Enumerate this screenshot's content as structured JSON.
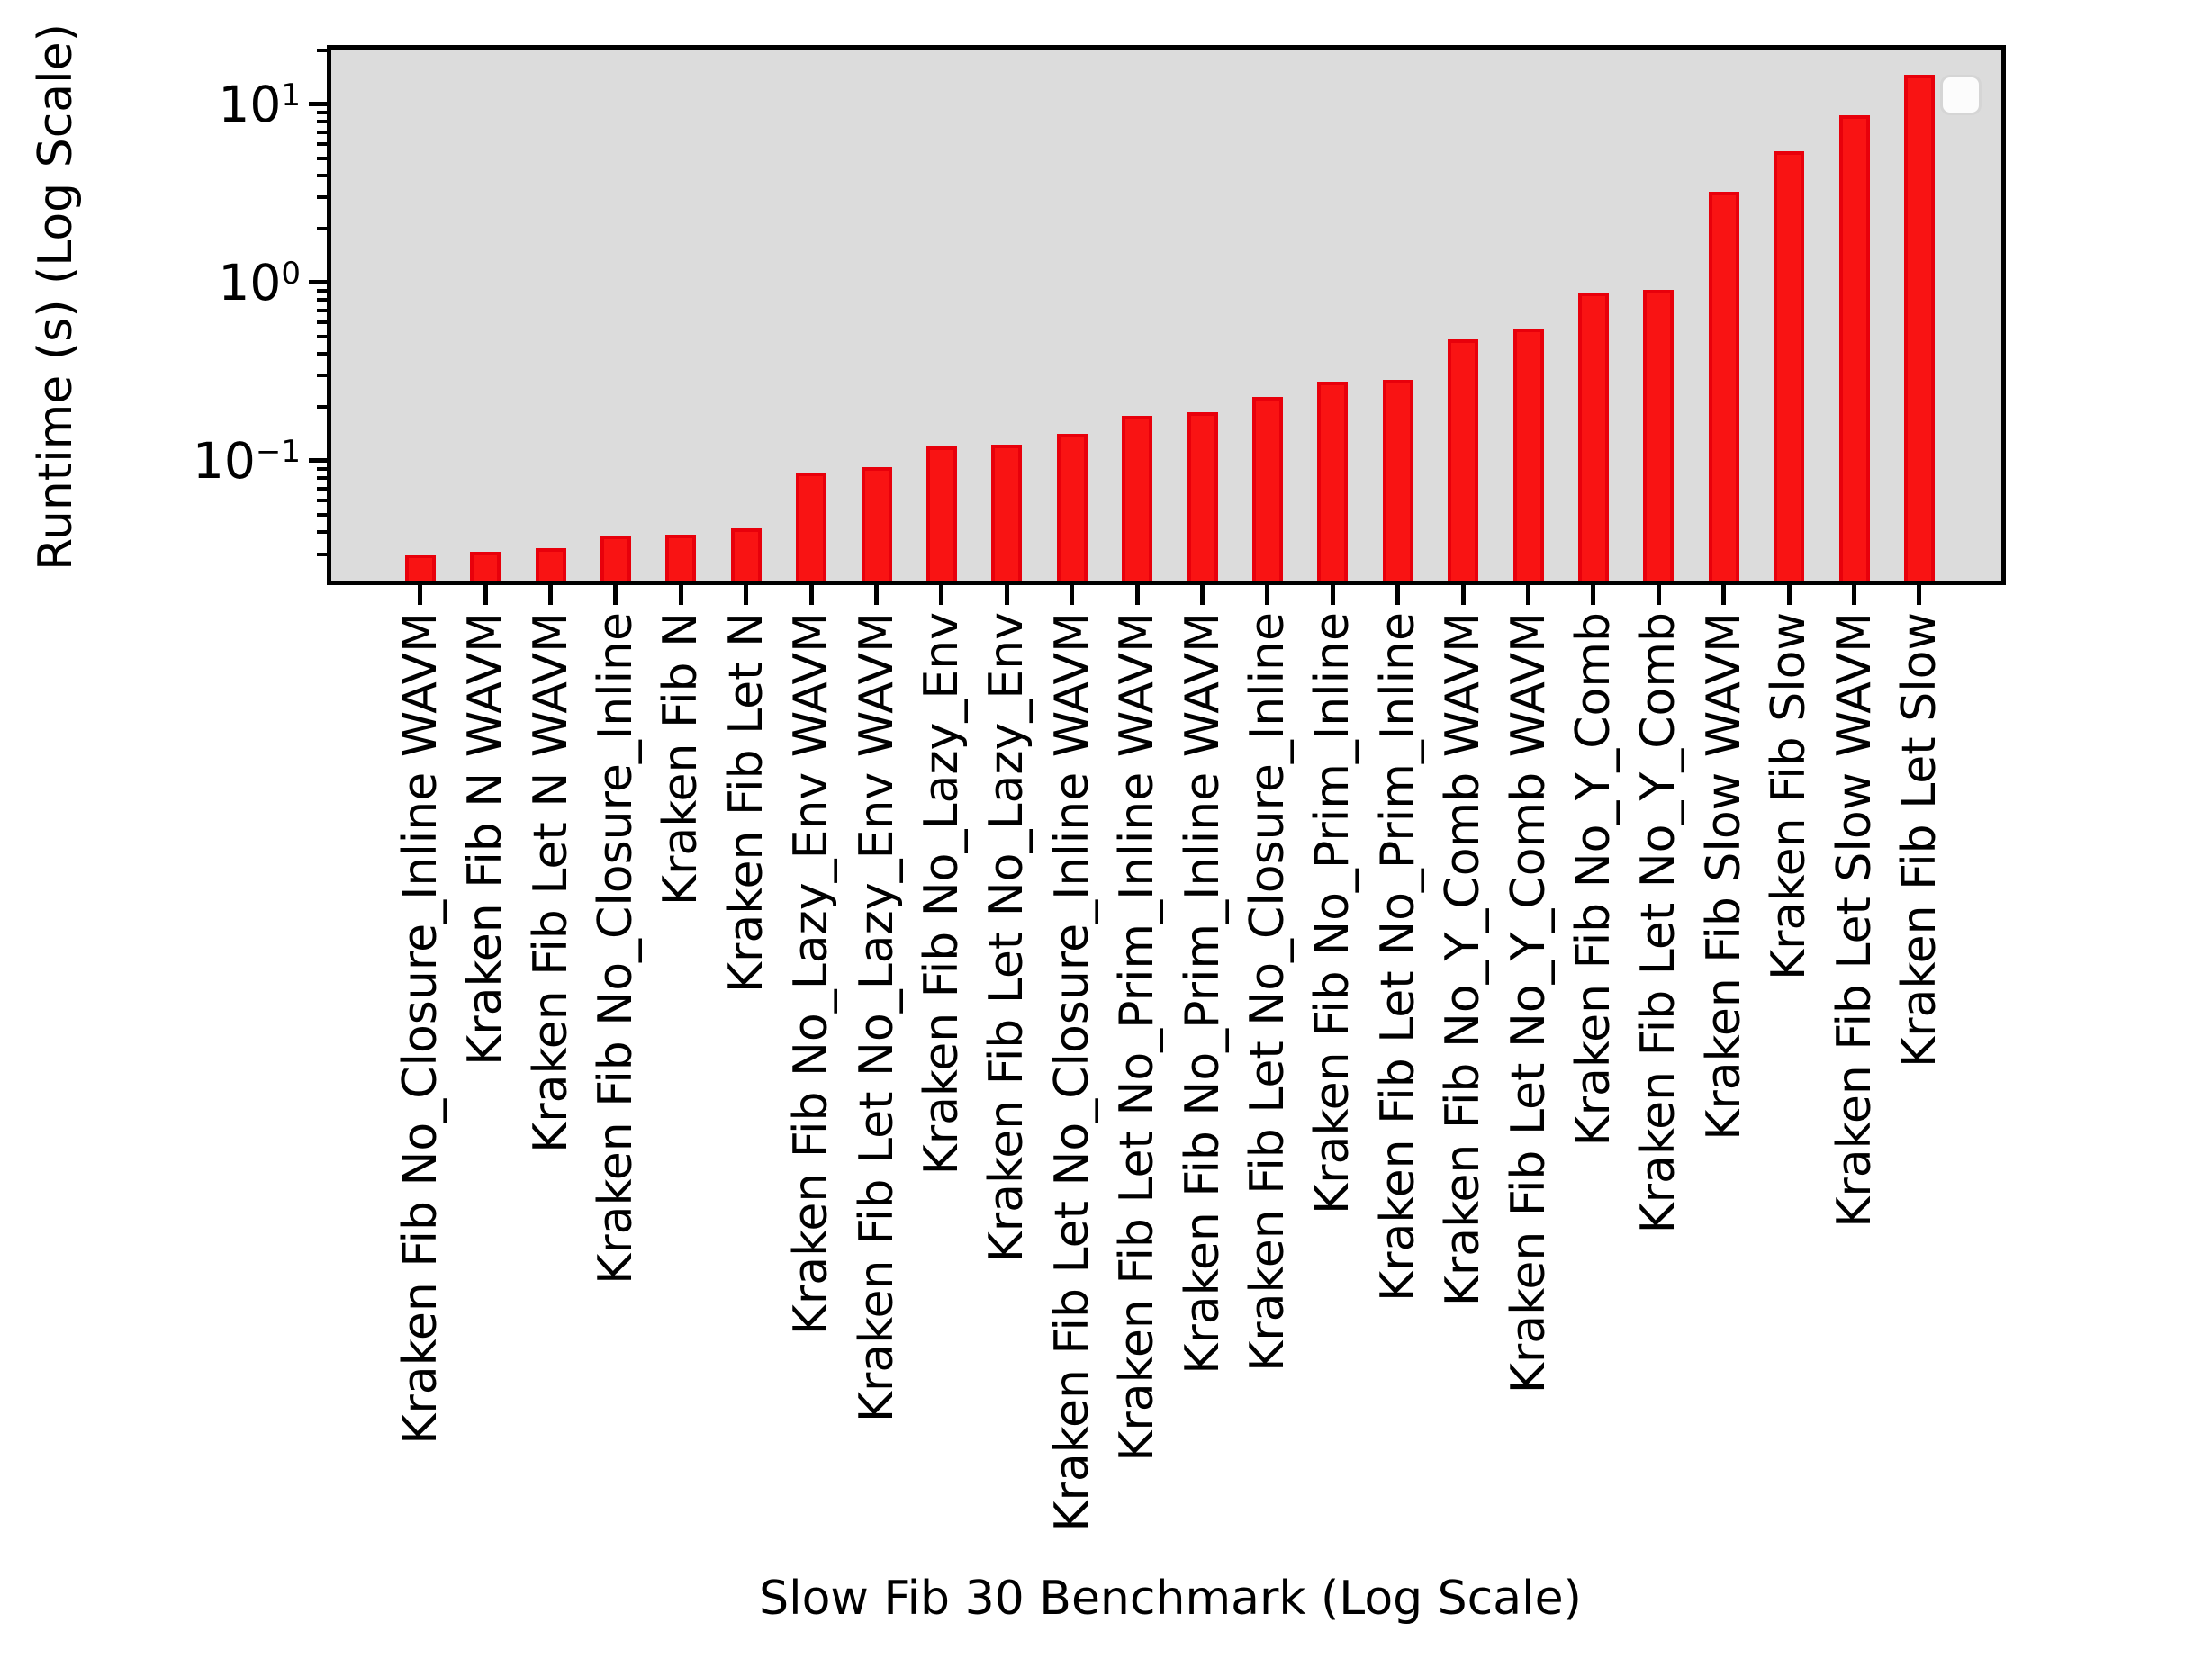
{
  "chart_data": {
    "type": "bar",
    "title": "",
    "xlabel": "Slow Fib 30 Benchmark (Log Scale)",
    "ylabel": "Runtime (s) (Log Scale)",
    "yscale": "log",
    "ylim": [
      0.0213,
      20.3
    ],
    "grid": false,
    "legend": {
      "visible": true,
      "position": "upper right",
      "entries": []
    },
    "colors": {
      "bar_fill": "#f91313",
      "bar_edge": "#e8000b",
      "axes_background": "#dcdcdc",
      "figure_background": "#ffffff",
      "text": "#000000"
    },
    "categories": [
      "Kraken Fib No_Closure_Inline WAVM",
      "Kraken Fib N WAVM",
      "Kraken Fib Let N WAVM",
      "Kraken Fib No_Closure_Inline",
      "Kraken Fib N",
      "Kraken Fib Let N",
      "Kraken Fib No_Lazy_Env WAVM",
      "Kraken Fib Let No_Lazy_Env WAVM",
      "Kraken Fib No_Lazy_Env",
      "Kraken Fib Let No_Lazy_Env",
      "Kraken Fib Let No_Closure_Inline WAVM",
      "Kraken Fib Let No_Prim_Inline WAVM",
      "Kraken Fib No_Prim_Inline WAVM",
      "Kraken Fib Let No_Closure_Inline",
      "Kraken Fib No_Prim_Inline",
      "Kraken Fib Let No_Prim_Inline",
      "Kraken Fib No_Y_Comb WAVM",
      "Kraken Fib Let No_Y_Comb WAVM",
      "Kraken Fib No_Y_Comb",
      "Kraken Fib Let No_Y_Comb",
      "Kraken Fib Slow WAVM",
      "Kraken Fib Slow",
      "Kraken Fib Let Slow WAVM",
      "Kraken Fib Let Slow"
    ],
    "values": [
      0.0298,
      0.031,
      0.0323,
      0.038,
      0.0386,
      0.042,
      0.0855,
      0.0925,
      0.121,
      0.123,
      0.141,
      0.178,
      0.187,
      0.229,
      0.277,
      0.286,
      0.482,
      0.553,
      0.88,
      0.914,
      3.25,
      5.44,
      8.73,
      14.7
    ],
    "y_major_ticks": [
      {
        "base": "10",
        "exp": "1",
        "value": 10
      },
      {
        "base": "10",
        "exp": "0",
        "value": 1
      },
      {
        "base": "10",
        "exp": "−1",
        "value": 0.1
      }
    ]
  }
}
